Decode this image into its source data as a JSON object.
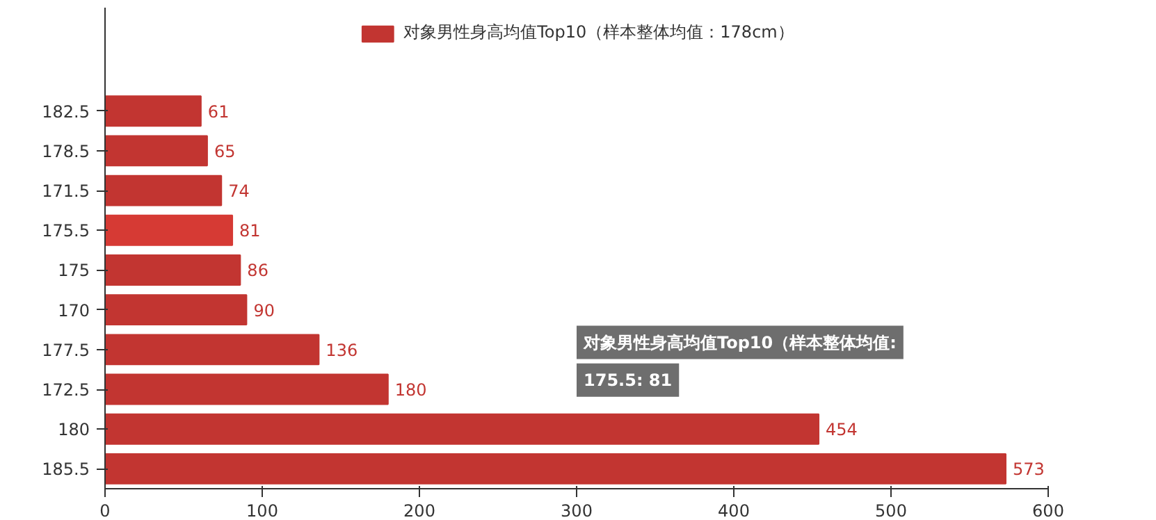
{
  "chart_data": {
    "type": "bar",
    "orientation": "horizontal",
    "categories": [
      "182.5",
      "178.5",
      "171.5",
      "175.5",
      "175",
      "170",
      "177.5",
      "172.5",
      "180",
      "185.5"
    ],
    "series": [
      {
        "name": "对象男性身高均值Top10（样本整体均值：178cm）",
        "color": "#c23531",
        "values": [
          61,
          65,
          74,
          81,
          86,
          90,
          136,
          180,
          454,
          573
        ],
        "colors": [
          "#c23531",
          "#c23531",
          "#c23531",
          "#d63a34",
          "#c23531",
          "#c23531",
          "#c23531",
          "#c23531",
          "#c23531",
          "#c23531"
        ]
      }
    ],
    "xlim": [
      0,
      600
    ],
    "xticks": [
      0,
      100,
      200,
      300,
      400,
      500,
      600
    ],
    "data_labels": true,
    "grid": false,
    "legend": "top",
    "annotations": [
      "对象男性身高均值Top10（样本整体均值:\n175.5: 81"
    ]
  }
}
